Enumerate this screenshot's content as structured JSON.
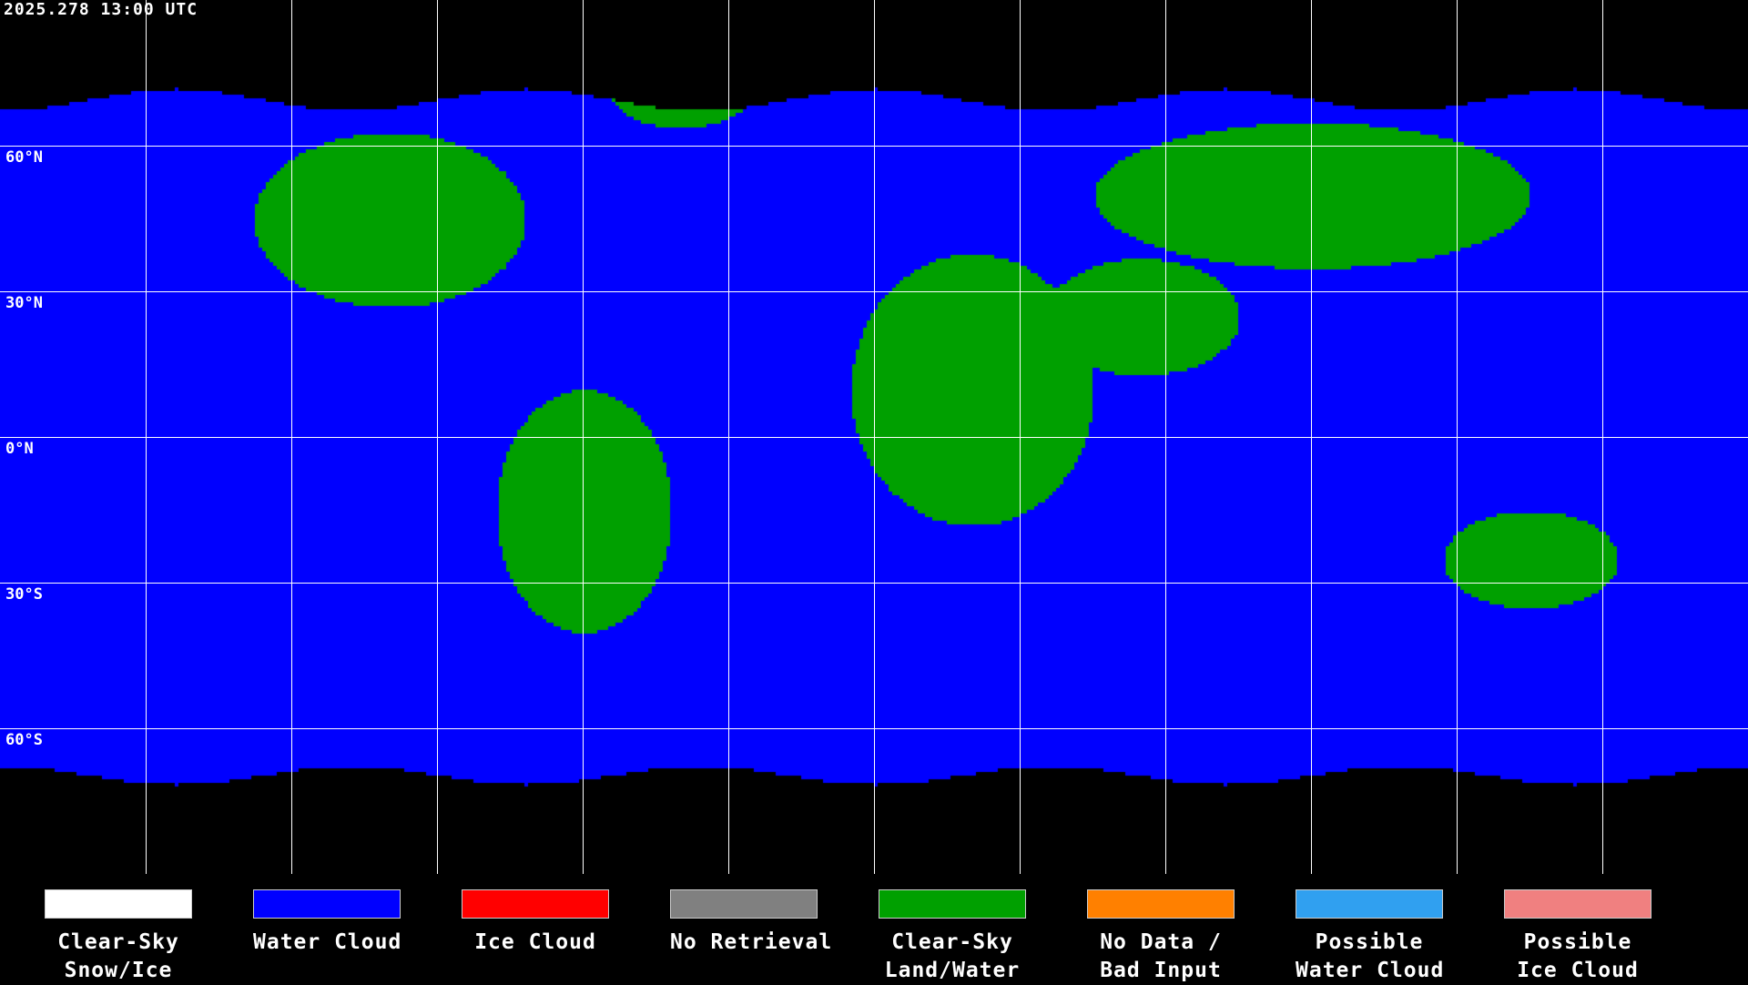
{
  "timestamp": "2025.278 13:00 UTC",
  "grid": {
    "lat_labels": [
      "60°N",
      "30°N",
      "0°N",
      "30°S",
      "60°S"
    ]
  },
  "legend": [
    {
      "line1": "Clear-Sky",
      "line2": "Snow/Ice",
      "color": "#ffffff"
    },
    {
      "line1": "Water Cloud",
      "line2": "",
      "color": "#0000ff"
    },
    {
      "line1": "Ice Cloud",
      "line2": "",
      "color": "#ff0000"
    },
    {
      "line1": "No Retrieval",
      "line2": "",
      "color": "#808080"
    },
    {
      "line1": "Clear-Sky",
      "line2": "Land/Water",
      "color": "#00a000"
    },
    {
      "line1": "No Data /",
      "line2": "Bad Input",
      "color": "#ff8000"
    },
    {
      "line1": "Possible",
      "line2": "Water Cloud",
      "color": "#30a0f0"
    },
    {
      "line1": "Possible",
      "line2": "Ice Cloud",
      "color": "#f08080"
    }
  ]
}
